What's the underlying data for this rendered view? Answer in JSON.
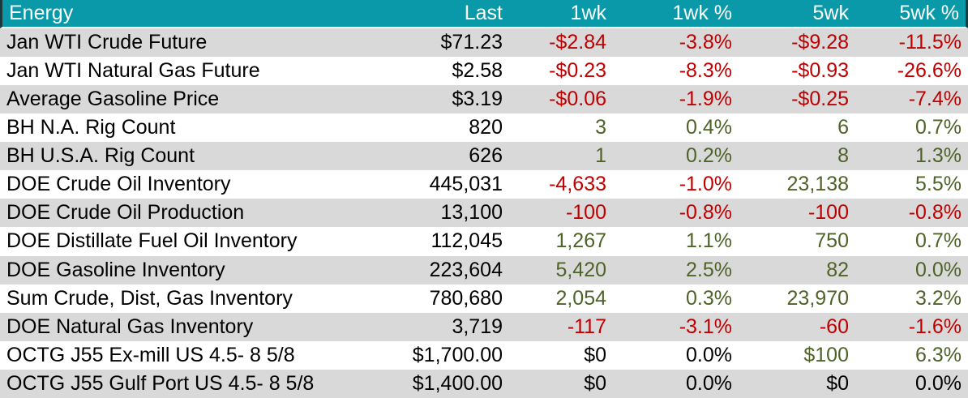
{
  "colors": {
    "header_bg": "#0A99A8",
    "header_text": "#FFFFFF",
    "row_stripe": "#D9D9D9",
    "row_plain": "#FFFFFF",
    "negative": "#C00000",
    "positive": "#4F6228",
    "neutral_text": "#000000",
    "header_edge": "#1B3A3E"
  },
  "table": {
    "title": "Energy",
    "columns": [
      "Energy",
      "Last",
      "1wk",
      "1wk %",
      "5wk",
      "5wk %"
    ],
    "column_keys": [
      "last",
      "1wk",
      "1wk-pct",
      "5wk",
      "5wk-pct"
    ],
    "rows": [
      {
        "label": "Jan WTI Crude Future",
        "cells": [
          {
            "value": "$71.23",
            "tone": "neutral"
          },
          {
            "value": "-$2.84",
            "tone": "neg"
          },
          {
            "value": "-3.8%",
            "tone": "neg"
          },
          {
            "value": "-$9.28",
            "tone": "neg"
          },
          {
            "value": "-11.5%",
            "tone": "neg"
          }
        ]
      },
      {
        "label": "Jan WTI Natural Gas Future",
        "cells": [
          {
            "value": "$2.58",
            "tone": "neutral"
          },
          {
            "value": "-$0.23",
            "tone": "neg"
          },
          {
            "value": "-8.3%",
            "tone": "neg"
          },
          {
            "value": "-$0.93",
            "tone": "neg"
          },
          {
            "value": "-26.6%",
            "tone": "neg"
          }
        ]
      },
      {
        "label": "Average Gasoline Price",
        "cells": [
          {
            "value": "$3.19",
            "tone": "neutral"
          },
          {
            "value": "-$0.06",
            "tone": "neg"
          },
          {
            "value": "-1.9%",
            "tone": "neg"
          },
          {
            "value": "-$0.25",
            "tone": "neg"
          },
          {
            "value": "-7.4%",
            "tone": "neg"
          }
        ]
      },
      {
        "label": "BH N.A. Rig Count",
        "cells": [
          {
            "value": "820",
            "tone": "neutral"
          },
          {
            "value": "3",
            "tone": "pos"
          },
          {
            "value": "0.4%",
            "tone": "pos"
          },
          {
            "value": "6",
            "tone": "pos"
          },
          {
            "value": "0.7%",
            "tone": "pos"
          }
        ]
      },
      {
        "label": "BH U.S.A. Rig Count",
        "cells": [
          {
            "value": "626",
            "tone": "neutral"
          },
          {
            "value": "1",
            "tone": "pos"
          },
          {
            "value": "0.2%",
            "tone": "pos"
          },
          {
            "value": "8",
            "tone": "pos"
          },
          {
            "value": "1.3%",
            "tone": "pos"
          }
        ]
      },
      {
        "label": "DOE Crude Oil Inventory",
        "cells": [
          {
            "value": "445,031",
            "tone": "neutral"
          },
          {
            "value": "-4,633",
            "tone": "neg"
          },
          {
            "value": "-1.0%",
            "tone": "neg"
          },
          {
            "value": "23,138",
            "tone": "pos"
          },
          {
            "value": "5.5%",
            "tone": "pos"
          }
        ]
      },
      {
        "label": "DOE Crude Oil Production",
        "cells": [
          {
            "value": "13,100",
            "tone": "neutral"
          },
          {
            "value": "-100",
            "tone": "neg"
          },
          {
            "value": "-0.8%",
            "tone": "neg"
          },
          {
            "value": "-100",
            "tone": "neg"
          },
          {
            "value": "-0.8%",
            "tone": "neg"
          }
        ]
      },
      {
        "label": "DOE Distillate Fuel Oil Inventory",
        "cells": [
          {
            "value": "112,045",
            "tone": "neutral"
          },
          {
            "value": "1,267",
            "tone": "pos"
          },
          {
            "value": "1.1%",
            "tone": "pos"
          },
          {
            "value": "750",
            "tone": "pos"
          },
          {
            "value": "0.7%",
            "tone": "pos"
          }
        ]
      },
      {
        "label": "DOE Gasoline Inventory",
        "cells": [
          {
            "value": "223,604",
            "tone": "neutral"
          },
          {
            "value": "5,420",
            "tone": "pos"
          },
          {
            "value": "2.5%",
            "tone": "pos"
          },
          {
            "value": "82",
            "tone": "pos"
          },
          {
            "value": "0.0%",
            "tone": "pos"
          }
        ]
      },
      {
        "label": "Sum Crude, Dist, Gas Inventory",
        "cells": [
          {
            "value": "780,680",
            "tone": "neutral"
          },
          {
            "value": "2,054",
            "tone": "pos"
          },
          {
            "value": "0.3%",
            "tone": "pos"
          },
          {
            "value": "23,970",
            "tone": "pos"
          },
          {
            "value": "3.2%",
            "tone": "pos"
          }
        ]
      },
      {
        "label": "DOE Natural Gas Inventory",
        "cells": [
          {
            "value": "3,719",
            "tone": "neutral"
          },
          {
            "value": "-117",
            "tone": "neg"
          },
          {
            "value": "-3.1%",
            "tone": "neg"
          },
          {
            "value": "-60",
            "tone": "neg"
          },
          {
            "value": "-1.6%",
            "tone": "neg"
          }
        ]
      },
      {
        "label": "OCTG J55 Ex-mill US 4.5- 8 5/8",
        "cells": [
          {
            "value": "$1,700.00",
            "tone": "neutral"
          },
          {
            "value": "$0",
            "tone": "neutral"
          },
          {
            "value": "0.0%",
            "tone": "neutral"
          },
          {
            "value": "$100",
            "tone": "pos"
          },
          {
            "value": "6.3%",
            "tone": "pos"
          }
        ]
      },
      {
        "label": "OCTG J55 Gulf Port US 4.5- 8 5/8",
        "cells": [
          {
            "value": "$1,400.00",
            "tone": "neutral"
          },
          {
            "value": "$0",
            "tone": "neutral"
          },
          {
            "value": "0.0%",
            "tone": "neutral"
          },
          {
            "value": "$0",
            "tone": "neutral"
          },
          {
            "value": "0.0%",
            "tone": "neutral"
          }
        ]
      }
    ]
  }
}
